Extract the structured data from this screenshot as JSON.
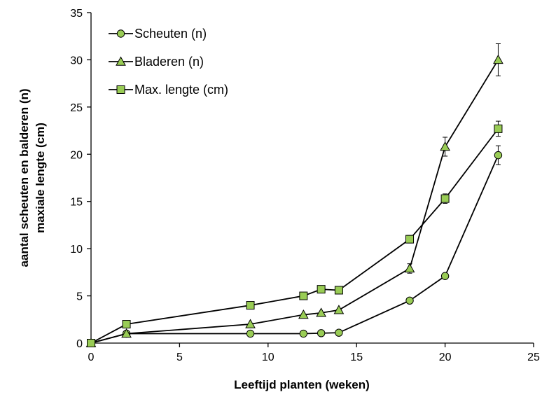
{
  "chart_data": {
    "type": "line",
    "xlabel": "Leeftijd planten (weken)",
    "ylabel": [
      "aantal scheuten en balderen  (n)",
      "maxiale lengte (cm)"
    ],
    "xlim": [
      0,
      25
    ],
    "ylim": [
      0,
      35
    ],
    "xticks": [
      0,
      5,
      10,
      15,
      20,
      25
    ],
    "yticks": [
      0,
      5,
      10,
      15,
      20,
      25,
      30,
      35
    ],
    "grid": false,
    "legend_position": "top-left",
    "marker_fill": "#99cc55",
    "line_color": "#000000",
    "series": [
      {
        "name": "Scheuten (n)",
        "marker": "circle",
        "x": [
          0,
          2,
          9,
          12,
          13,
          14,
          18,
          20,
          23
        ],
        "y": [
          0,
          1,
          1,
          1,
          1.05,
          1.1,
          4.5,
          7.1,
          19.9
        ],
        "err": [
          0,
          0,
          0,
          0,
          0,
          0,
          0.2,
          0.2,
          1.0
        ]
      },
      {
        "name": "Bladeren (n)",
        "marker": "triangle",
        "x": [
          0,
          2,
          9,
          12,
          13,
          14,
          18,
          20,
          23
        ],
        "y": [
          0,
          1,
          2,
          3,
          3.2,
          3.5,
          7.9,
          20.8,
          30.0
        ],
        "err": [
          0,
          0,
          0,
          0,
          0,
          0,
          0.5,
          1.0,
          1.7
        ]
      },
      {
        "name": "Max. lengte (cm)",
        "marker": "square",
        "x": [
          0,
          2,
          9,
          12,
          13,
          14,
          18,
          20,
          23
        ],
        "y": [
          0,
          2,
          4,
          5,
          5.7,
          5.6,
          11.0,
          15.3,
          22.7
        ],
        "err": [
          0,
          0,
          0,
          0,
          0,
          0,
          0.4,
          0.5,
          0.8
        ]
      }
    ]
  }
}
